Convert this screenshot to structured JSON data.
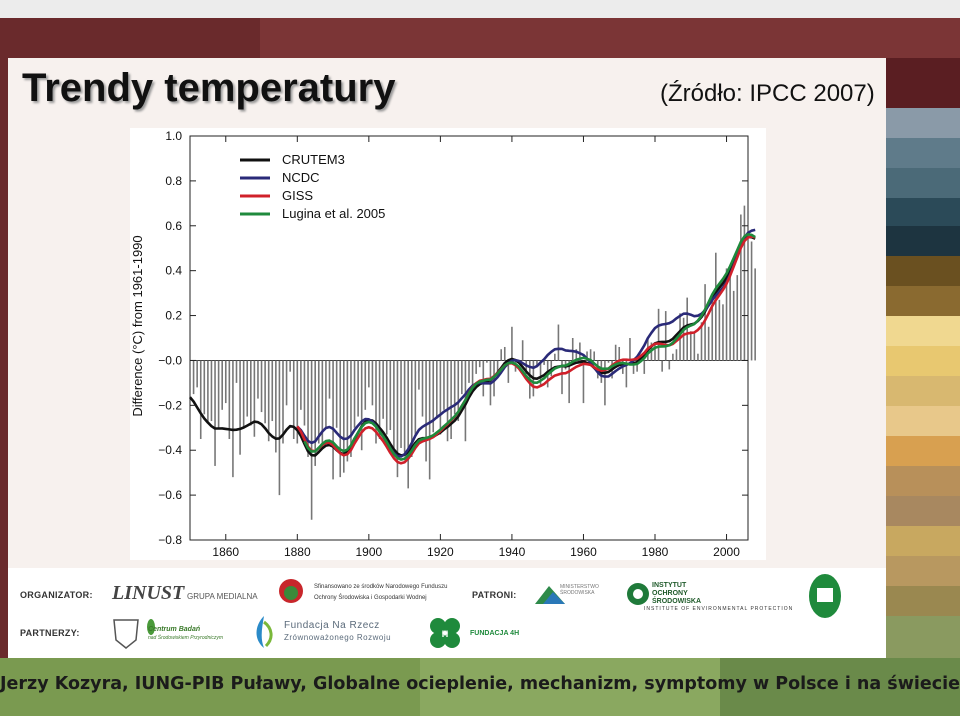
{
  "slide": {
    "title": "Trendy temperatury",
    "source": "(Źródło: IPCC 2007)",
    "footer": "Jerzy Kozyra, IUNG-PIB Puławy, Globalne ocieplenie, mechanizm, symptomy w Polsce i na świecie"
  },
  "sponsors": {
    "organizer_label": "ORGANIZATOR:",
    "partners_label": "PARTNERZY:",
    "patrons_label": "PATRONI:",
    "linust": "LINUST",
    "linust_sub": "GRUPA MEDIALNA",
    "nfos_line1": "Sfinansowano ze środków Narodowego Funduszu",
    "nfos_line2": "Ochrony Środowiska i Gospodarki Wodnej",
    "ministry": "MINISTERSTWO ŚRODOWISKA",
    "ios_line1": "INSTYTUT",
    "ios_line2": "OCHRONY",
    "ios_line3": "ŚRODOWISKA",
    "ios_sub": "INSTITUTE OF ENVIRONMENTAL PROTECTION",
    "centrum_line1": "Centrum Badań",
    "centrum_line2": "nad Środowiskiem Przyrodniczym",
    "fundacja_line1": "Fundacja Na Rzecz",
    "fundacja_line2": "Zrównoważonego Rozwoju",
    "fundacja4h": "FUNDACJA 4H"
  },
  "colors": {
    "black": "#111111",
    "ncdc": "#2a2a78",
    "giss": "#d0202a",
    "lugina": "#1f8a3c"
  },
  "chart_data": {
    "type": "bar+line",
    "ylabel": "Difference (°C) from 1961-1990",
    "ylim": [
      -0.8,
      1.0
    ],
    "xlim": [
      1850,
      2006
    ],
    "yticks": [
      1.0,
      0.8,
      0.6,
      0.4,
      0.2,
      0.0,
      -0.2,
      -0.4,
      -0.6,
      -0.8
    ],
    "ytick_labels": [
      "1.0",
      "0.8",
      "0.6",
      "0.4",
      "0.2",
      "−0.0",
      "−0.2",
      "−0.4",
      "−0.6",
      "−0.8"
    ],
    "xticks": [
      1860,
      1880,
      1900,
      1920,
      1940,
      1960,
      1980,
      2000
    ],
    "legend": [
      "CRUTEM3",
      "NCDC",
      "GISS",
      "Lugina et al. 2005"
    ],
    "legend_label_2005": "Lugina et al. 2005",
    "annual_years_start": 1850,
    "annual_anomalies": [
      -0.08,
      -0.15,
      -0.12,
      -0.35,
      -0.24,
      -0.28,
      -0.27,
      -0.47,
      -0.3,
      -0.22,
      -0.19,
      -0.35,
      -0.52,
      -0.1,
      -0.42,
      -0.3,
      -0.25,
      -0.29,
      -0.34,
      -0.17,
      -0.23,
      -0.28,
      -0.36,
      -0.27,
      -0.41,
      -0.6,
      -0.37,
      -0.2,
      -0.05,
      -0.35,
      -0.37,
      -0.22,
      -0.29,
      -0.43,
      -0.71,
      -0.47,
      -0.37,
      -0.39,
      -0.3,
      -0.17,
      -0.53,
      -0.3,
      -0.52,
      -0.5,
      -0.45,
      -0.43,
      -0.3,
      -0.25,
      -0.4,
      -0.22,
      -0.12,
      -0.2,
      -0.37,
      -0.35,
      -0.26,
      -0.33,
      -0.31,
      -0.44,
      -0.52,
      -0.39,
      -0.41,
      -0.57,
      -0.43,
      -0.34,
      -0.13,
      -0.25,
      -0.45,
      -0.53,
      -0.32,
      -0.26,
      -0.33,
      -0.22,
      -0.36,
      -0.35,
      -0.24,
      -0.27,
      -0.15,
      -0.36,
      -0.1,
      -0.12,
      -0.06,
      -0.03,
      -0.16,
      -0.01,
      -0.2,
      -0.16,
      -0.06,
      0.05,
      0.06,
      -0.1,
      0.15,
      -0.05,
      -0.01,
      0.09,
      -0.06,
      -0.17,
      -0.16,
      -0.03,
      -0.11,
      -0.02,
      -0.12,
      -0.07,
      0.03,
      0.16,
      -0.15,
      -0.04,
      -0.19,
      0.1,
      0.05,
      0.08,
      -0.19,
      0.04,
      0.05,
      0.04,
      -0.08,
      -0.1,
      -0.2,
      -0.01,
      -0.08,
      0.07,
      0.06,
      -0.06,
      -0.12,
      0.1,
      -0.06,
      -0.05,
      0.02,
      -0.06,
      0.1,
      0.08,
      0.07,
      0.23,
      -0.05,
      0.22,
      -0.04,
      0.03,
      0.05,
      0.21,
      0.19,
      0.28,
      0.13,
      0.12,
      0.03,
      0.17,
      0.34,
      0.15,
      0.28,
      0.48,
      0.27,
      0.25,
      0.41,
      0.42,
      0.31,
      0.38,
      0.65,
      0.69,
      0.63,
      0.53,
      0.41
    ]
  }
}
